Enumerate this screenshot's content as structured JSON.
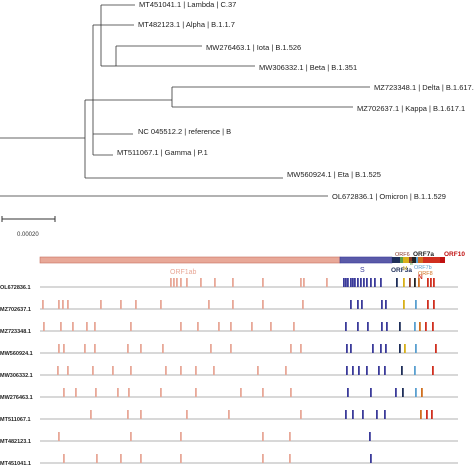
{
  "tree": {
    "leaves": [
      {
        "label": "MT451041.1 | Lambda | C.37"
      },
      {
        "label": "MT482123.1 | Alpha | B.1.1.7"
      },
      {
        "label": "MW276463.1 | Iota | B.1.526"
      },
      {
        "label": "MW306332.1 | Beta | B.1.351"
      },
      {
        "label": "MZ723348.1 | Delta | B.1.617.2"
      },
      {
        "label": "MZ702637.1 | Kappa | B.1.617.1"
      },
      {
        "label": "NC 045512.2 | reference | B"
      },
      {
        "label": "MT511067.1 | Gamma | P.1"
      },
      {
        "label": "MW560924.1 | Eta | B.1.525"
      },
      {
        "label": "OL672836.1 | Omicron | B.1.1.529"
      }
    ],
    "scale_label": "0.00020",
    "line_color": "#333333"
  },
  "genome": {
    "genes": [
      {
        "label": "ORF1ab",
        "color": "#e8a898"
      },
      {
        "label": "S",
        "color": "#3b3b9a"
      },
      {
        "label": "ORF3a",
        "color": "#1f2f5a"
      },
      {
        "label": "E",
        "color": "#5a9e4a"
      },
      {
        "label": "M",
        "color": "#d8b01a"
      },
      {
        "label": "ORF6",
        "color": "#8a3a2a"
      },
      {
        "label": "ORF7a",
        "color": "#222222"
      },
      {
        "label": "ORF7b",
        "color": "#5aa0d0"
      },
      {
        "label": "ORF8",
        "color": "#d07020"
      },
      {
        "label": "N",
        "color": "#d03020"
      },
      {
        "label": "ORF10",
        "color": "#c01010"
      }
    ],
    "rows": [
      {
        "label": "OL672836.1"
      },
      {
        "label": "MZ702637.1"
      },
      {
        "label": "MZ723348.1"
      },
      {
        "label": "MW560924.1"
      },
      {
        "label": "MW306332.1"
      },
      {
        "label": "MW276463.1"
      },
      {
        "label": "MT511067.1"
      },
      {
        "label": "MT482123.1"
      },
      {
        "label": "MT451041.1"
      }
    ]
  }
}
